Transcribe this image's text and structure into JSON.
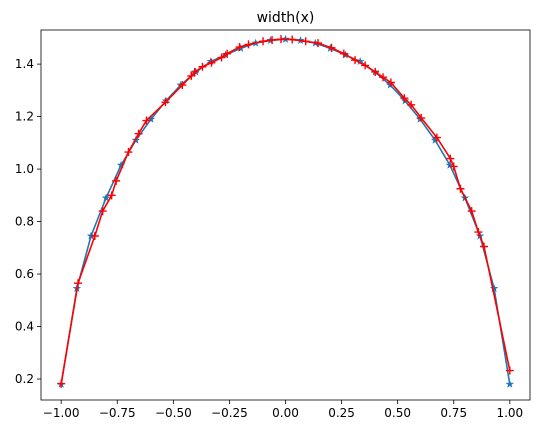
{
  "chart_data": {
    "type": "line",
    "title": "width(x)",
    "xlabel": "",
    "ylabel": "",
    "xlim": [
      -1.09,
      1.09
    ],
    "ylim": [
      0.12,
      1.53
    ],
    "xticks": [
      -1.0,
      -0.75,
      -0.5,
      -0.25,
      0.0,
      0.25,
      0.5,
      0.75,
      1.0
    ],
    "xtick_labels": [
      "−1.00",
      "−0.75",
      "−0.50",
      "−0.25",
      "0.00",
      "0.25",
      "0.50",
      "0.75",
      "1.00"
    ],
    "yticks": [
      0.2,
      0.4,
      0.6,
      0.8,
      1.0,
      1.2,
      1.4
    ],
    "ytick_labels": [
      "0.2",
      "0.4",
      "0.6",
      "0.8",
      "1.0",
      "1.2",
      "1.4"
    ],
    "grid": false,
    "series": [
      {
        "marker": "star",
        "color": "#1f77b4",
        "x": [
          -1.0,
          -0.93,
          -0.867,
          -0.8,
          -0.733,
          -0.667,
          -0.6,
          -0.533,
          -0.467,
          -0.4,
          -0.333,
          -0.267,
          -0.2,
          -0.133,
          -0.067,
          0.0,
          0.067,
          0.133,
          0.2,
          0.267,
          0.333,
          0.4,
          0.467,
          0.533,
          0.6,
          0.667,
          0.733,
          0.8,
          0.867,
          0.93,
          1.0
        ],
        "y": [
          0.18,
          0.545,
          0.745,
          0.89,
          1.015,
          1.11,
          1.19,
          1.26,
          1.32,
          1.37,
          1.41,
          1.435,
          1.46,
          1.48,
          1.49,
          1.495,
          1.49,
          1.48,
          1.46,
          1.435,
          1.41,
          1.37,
          1.32,
          1.26,
          1.19,
          1.11,
          1.015,
          0.89,
          0.745,
          0.545,
          0.18
        ]
      },
      {
        "marker": "plus",
        "color": "#ff0000",
        "x": [
          -1.0,
          -0.925,
          -0.85,
          -0.815,
          -0.775,
          -0.755,
          -0.7,
          -0.655,
          -0.62,
          -0.535,
          -0.46,
          -0.42,
          -0.405,
          -0.37,
          -0.33,
          -0.285,
          -0.26,
          -0.205,
          -0.165,
          -0.1,
          -0.06,
          -0.02,
          0.03,
          0.09,
          0.145,
          0.205,
          0.26,
          0.31,
          0.355,
          0.4,
          0.435,
          0.47,
          0.53,
          0.56,
          0.605,
          0.675,
          0.735,
          0.75,
          0.78,
          0.83,
          0.86,
          0.885,
          1.0
        ],
        "y": [
          0.182,
          0.565,
          0.745,
          0.84,
          0.9,
          0.955,
          1.065,
          1.135,
          1.185,
          1.255,
          1.32,
          1.355,
          1.37,
          1.39,
          1.405,
          1.425,
          1.44,
          1.465,
          1.475,
          1.487,
          1.492,
          1.495,
          1.494,
          1.487,
          1.48,
          1.462,
          1.44,
          1.415,
          1.395,
          1.37,
          1.35,
          1.33,
          1.27,
          1.245,
          1.195,
          1.12,
          1.04,
          1.01,
          0.925,
          0.84,
          0.76,
          0.705,
          0.232
        ]
      }
    ]
  }
}
